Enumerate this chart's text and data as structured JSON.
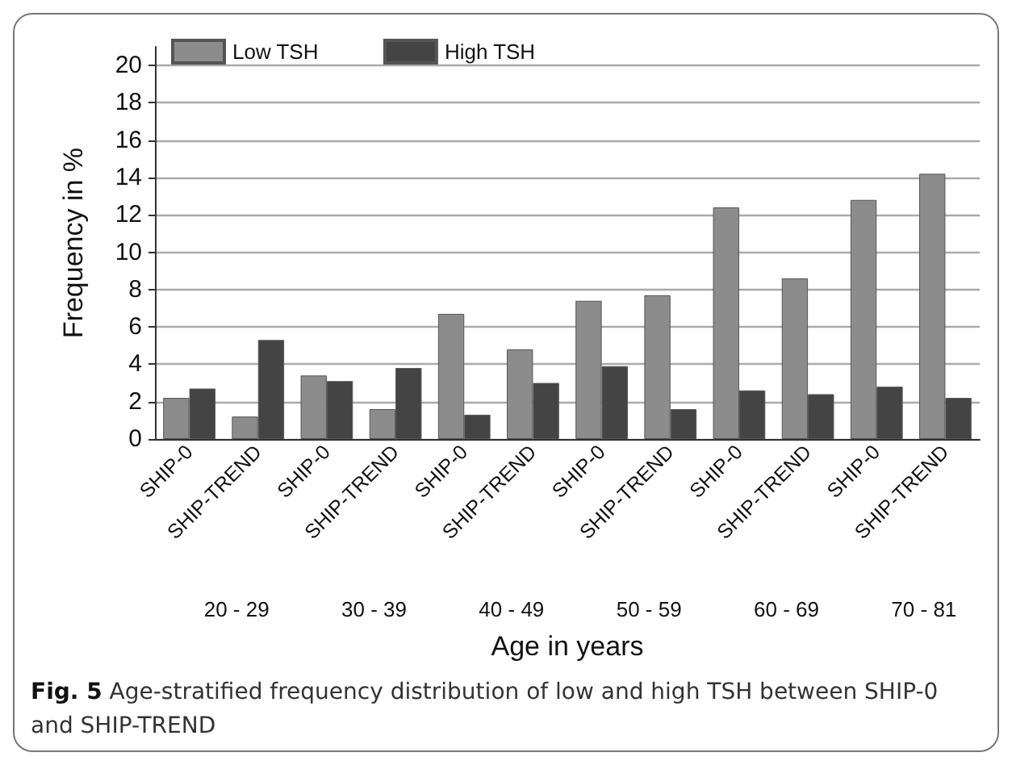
{
  "chart_data": {
    "type": "bar",
    "categories": [
      "SHIP-0",
      "SHIP-TREND",
      "SHIP-0",
      "SHIP-TREND",
      "SHIP-0",
      "SHIP-TREND",
      "SHIP-0",
      "SHIP-TREND",
      "SHIP-0",
      "SHIP-TREND",
      "SHIP-0",
      "SHIP-TREND"
    ],
    "series": [
      {
        "name": "Low TSH",
        "color": "#8c8c8c",
        "values": [
          2.2,
          1.2,
          3.4,
          1.6,
          6.7,
          4.8,
          7.4,
          7.7,
          12.4,
          8.6,
          12.8,
          14.2
        ]
      },
      {
        "name": "High TSH",
        "color": "#444444",
        "values": [
          2.7,
          5.3,
          3.1,
          3.8,
          1.3,
          3.0,
          3.9,
          1.6,
          2.6,
          2.4,
          2.8,
          2.2
        ]
      }
    ],
    "ylabel": "Frequency in %",
    "xlabel": "Age in years",
    "ylim": [
      0,
      21
    ],
    "yticks": [
      0,
      2,
      4,
      6,
      8,
      10,
      12,
      14,
      16,
      18,
      20
    ],
    "grid": "y",
    "legend": "top left",
    "annotations": [
      "20 - 29",
      "30 - 39",
      "40 - 49",
      "50 - 59",
      "60 - 69",
      "70 - 81",
      "Fig. 5 Age-stratified frequency distribution of low and high TSH between SHIP-0 and SHIP-TREND"
    ]
  }
}
